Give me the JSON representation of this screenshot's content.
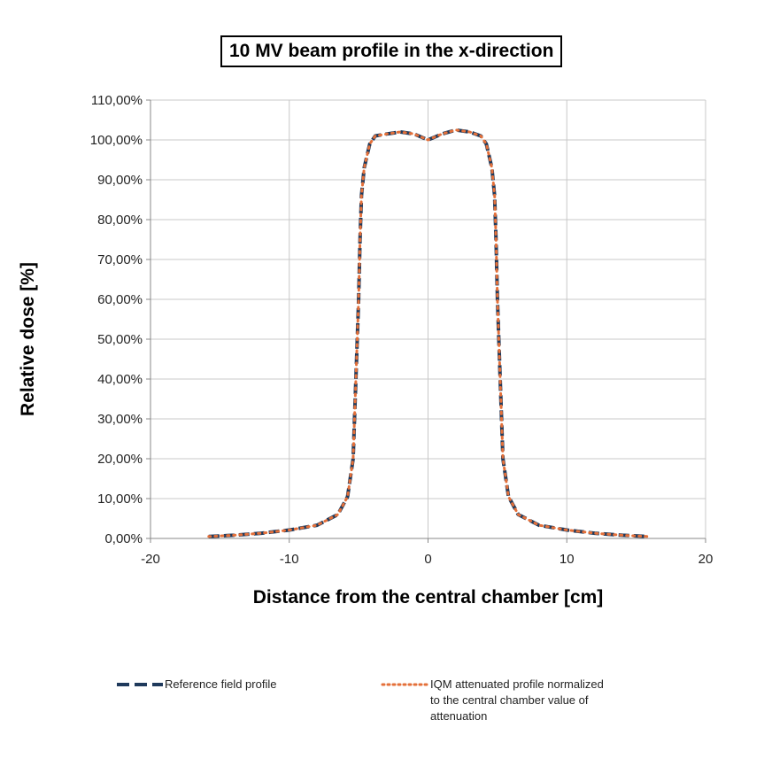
{
  "chart_data": {
    "type": "line",
    "title": "10 MV beam profile in the x-direction",
    "xlabel": "Distance from the central chamber [cm]",
    "ylabel": "Relative dose [%]",
    "xlim": [
      -20,
      20
    ],
    "ylim": [
      0,
      110
    ],
    "x_ticks": [
      -20,
      -10,
      0,
      10,
      20
    ],
    "y_ticks": [
      0,
      10,
      20,
      30,
      40,
      50,
      60,
      70,
      80,
      90,
      100,
      110
    ],
    "y_tick_labels": [
      "0,00%",
      "10,00%",
      "20,00%",
      "30,00%",
      "40,00%",
      "50,00%",
      "60,00%",
      "70,00%",
      "80,00%",
      "90,00%",
      "100,00%",
      "110,00%"
    ],
    "grid": true,
    "legend_position": "bottom",
    "series": [
      {
        "name": "Reference field profile",
        "color": "#1f3a5c",
        "style": "dashed",
        "x": [
          -15.8,
          -14,
          -12,
          -10,
          -8,
          -6.5,
          -5.8,
          -5.4,
          -5.2,
          -5.0,
          -4.9,
          -4.8,
          -4.6,
          -4.4,
          -4.2,
          -3.8,
          -3,
          -2,
          -1,
          0,
          1,
          2,
          3,
          3.8,
          4.2,
          4.4,
          4.6,
          4.8,
          4.9,
          5.0,
          5.2,
          5.4,
          5.8,
          6.5,
          8,
          10,
          12,
          14,
          15.8
        ],
        "y": [
          0.5,
          0.8,
          1.3,
          2.1,
          3.3,
          6.0,
          10.5,
          20,
          40,
          60,
          75,
          86,
          93,
          96,
          99,
          101,
          101.5,
          102,
          101.5,
          100,
          101.5,
          102.5,
          102,
          101,
          99,
          96,
          93,
          86,
          75,
          60,
          40,
          20,
          10.5,
          6.0,
          3.3,
          2.1,
          1.3,
          0.8,
          0.5
        ]
      },
      {
        "name": "IQM attenuated profile normalized to the central chamber value of attenuation",
        "color": "#e4703a",
        "style": "dotted",
        "x": [
          -15.8,
          -14,
          -12,
          -10,
          -8,
          -6.5,
          -5.8,
          -5.4,
          -5.2,
          -5.0,
          -4.9,
          -4.8,
          -4.6,
          -4.4,
          -4.2,
          -3.8,
          -3,
          -2,
          -1,
          0,
          1,
          2,
          3,
          3.8,
          4.2,
          4.4,
          4.6,
          4.8,
          4.9,
          5.0,
          5.2,
          5.4,
          5.8,
          6.5,
          8,
          10,
          12,
          14,
          15.8
        ],
        "y": [
          0.5,
          0.8,
          1.3,
          2.1,
          3.3,
          6.0,
          10.5,
          20,
          40,
          60,
          75,
          86,
          93,
          96,
          99,
          101,
          101.5,
          102,
          101.5,
          100,
          101.5,
          102.5,
          102,
          101,
          99,
          96,
          93,
          86,
          75,
          60,
          40,
          20,
          10.5,
          6.0,
          3.3,
          2.1,
          1.3,
          0.8,
          0.5
        ]
      }
    ],
    "legend": {
      "items": [
        {
          "label": "Reference field profile"
        },
        {
          "label_lines": [
            "IQM attenuated profile normalized",
            "to the central chamber value of",
            "attenuation"
          ]
        }
      ]
    }
  }
}
